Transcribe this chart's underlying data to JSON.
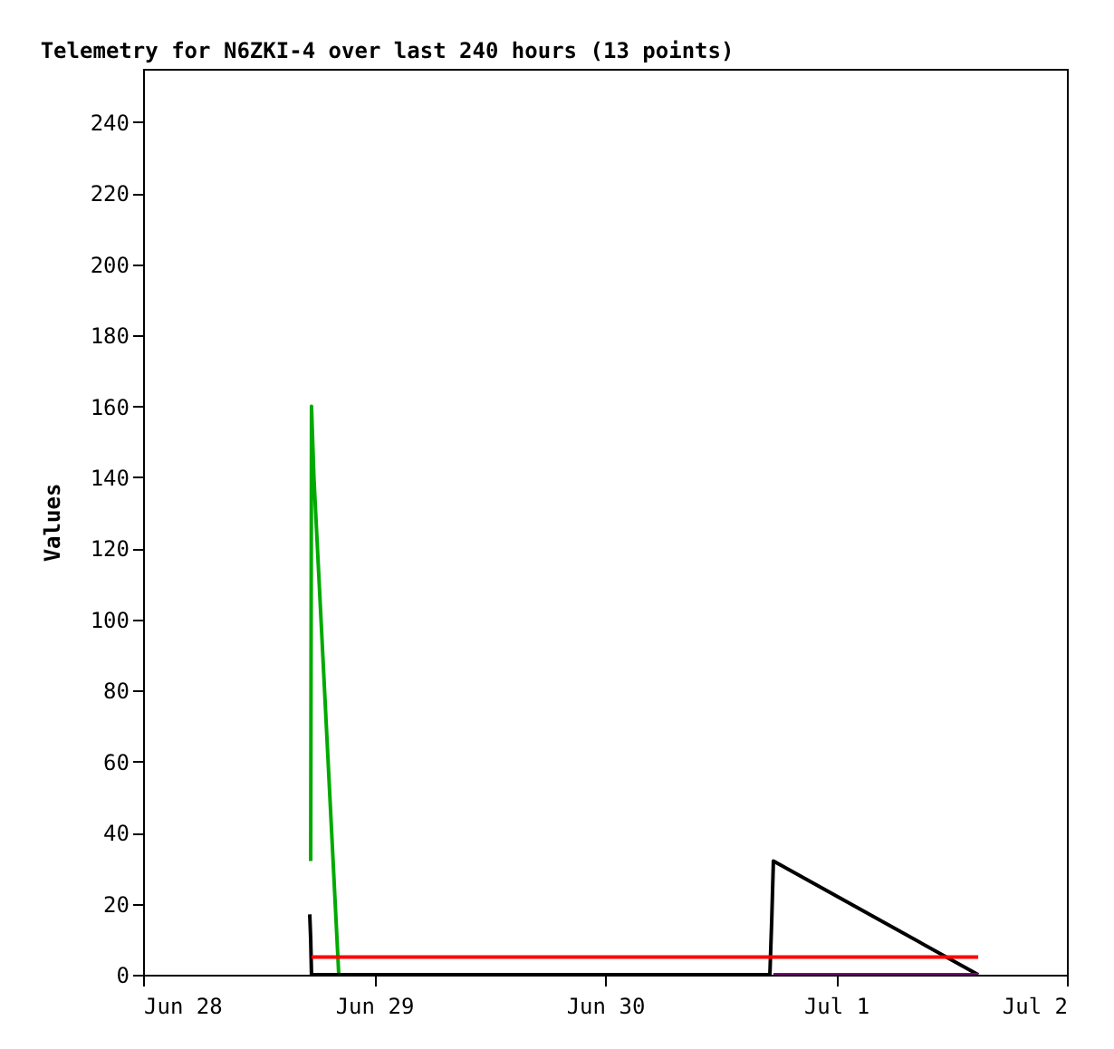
{
  "chart_data": {
    "type": "line",
    "title": "Telemetry for N6ZKI-4 over last 240 hours (13 points)",
    "ylabel": "Values",
    "xlim": [
      "--06-28",
      "--07-02"
    ],
    "xticks": [
      {
        "value": "--06-28",
        "label": "Jun 28"
      },
      {
        "value": "--06-29",
        "label": "Jun 29"
      },
      {
        "value": "--06-30",
        "label": "Jun 30"
      },
      {
        "value": "--07-01",
        "label": "Jul 1"
      },
      {
        "value": "--07-02",
        "label": "Jul 2"
      }
    ],
    "ylim": [
      0,
      255
    ],
    "yticks": [
      0,
      20,
      40,
      60,
      80,
      100,
      120,
      140,
      160,
      180,
      200,
      220,
      240
    ],
    "grid": false,
    "marker": "none",
    "line_style": "solid",
    "series": [
      {
        "color": "#00aa00",
        "x": [
          "--06-28T17:25",
          "--06-28T17:30",
          "--06-28T17:45",
          "--06-28T20:20"
        ],
        "values": [
          32,
          160,
          140,
          0
        ]
      },
      {
        "color": "#000000",
        "x": [
          "--06-28T17:19",
          "--06-28T17:25",
          "--06-28T17:30",
          "--06-30T17:08",
          "--06-30T17:20",
          "--06-30T17:30",
          "--07-01T14:47"
        ],
        "values": [
          17,
          10,
          0,
          0,
          16,
          32,
          0
        ]
      },
      {
        "color": "#ff0000",
        "x": [
          "--06-28T17:30",
          "--07-01T14:47"
        ],
        "values": [
          5,
          5
        ]
      },
      {
        "color": "#800080",
        "x": [
          "--06-30T17:30",
          "--07-01T14:47"
        ],
        "values": [
          0,
          0
        ]
      }
    ]
  }
}
